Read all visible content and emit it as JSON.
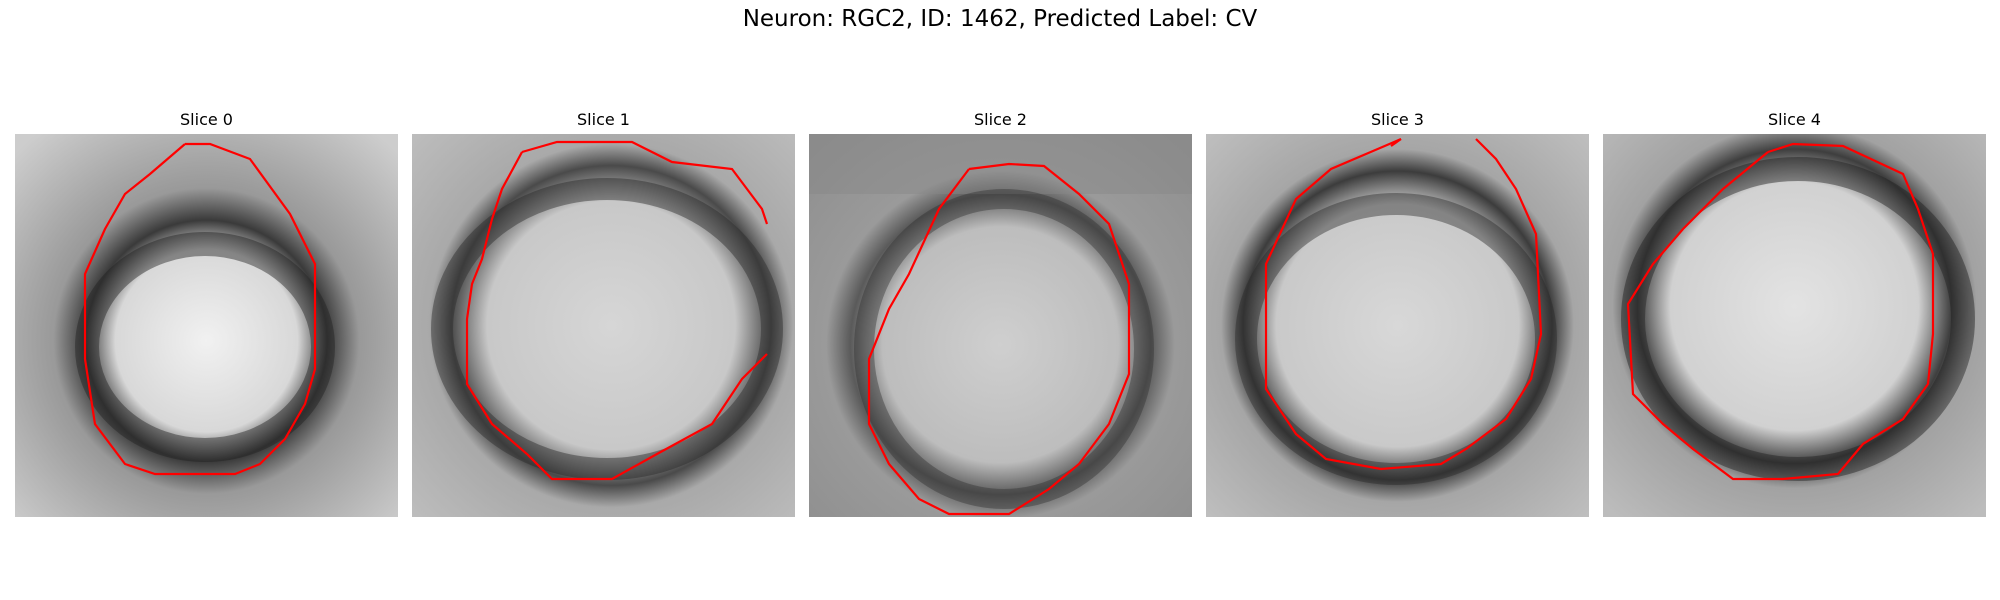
{
  "figure": {
    "title": "Neuron: RGC2, ID: 1462, Predicted Label: CV",
    "contour_color": "#ff0000"
  },
  "slices": [
    {
      "title": "Slice 0"
    },
    {
      "title": "Slice 1"
    },
    {
      "title": "Slice 2"
    },
    {
      "title": "Slice 3"
    },
    {
      "title": "Slice 4"
    }
  ]
}
